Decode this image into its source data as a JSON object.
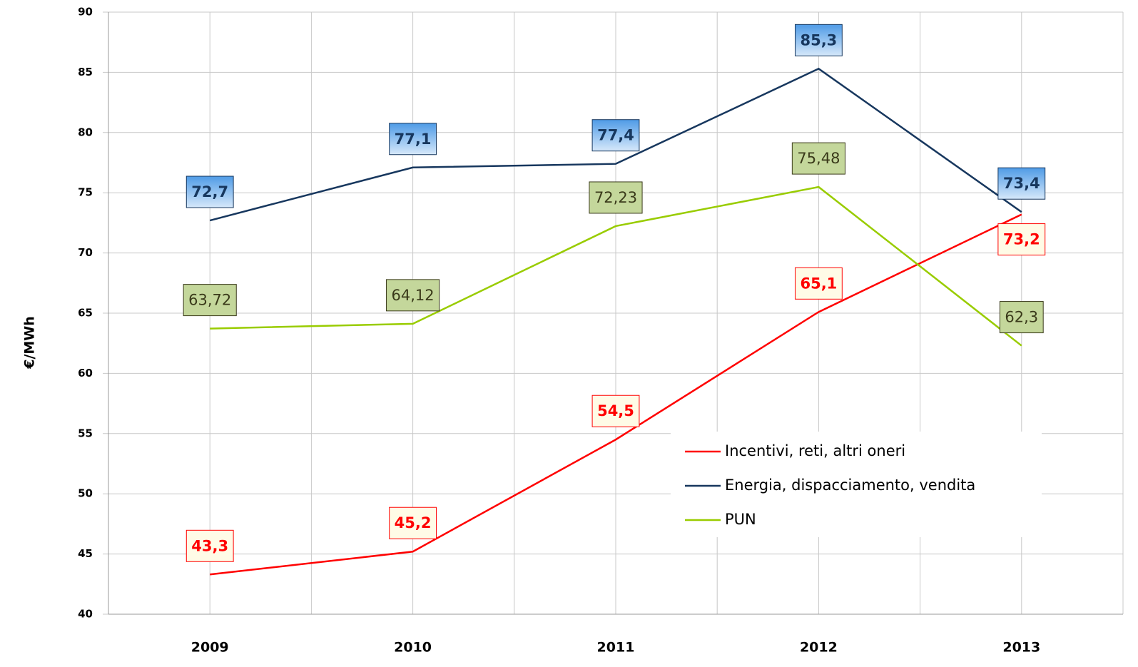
{
  "chart_data": {
    "type": "line",
    "y_label": "€/MWh",
    "categories": [
      "2009",
      "2010",
      "2011",
      "2012",
      "2013"
    ],
    "series": [
      {
        "name": "Incentivi, reti, altri oneri",
        "color": "#ff0000",
        "values": [
          43.3,
          45.2,
          54.5,
          65.1,
          73.2
        ],
        "value_labels": [
          "43,3",
          "45,2",
          "54,5",
          "65,1",
          "73,2"
        ]
      },
      {
        "name": "Energia, dispacciamento, vendita",
        "color": "#17375e",
        "values": [
          72.7,
          77.1,
          77.4,
          85.3,
          73.4
        ],
        "value_labels": [
          "72,7",
          "77,1",
          "77,4",
          "85,3",
          "73,4"
        ]
      },
      {
        "name": "PUN",
        "color": "#99cc00",
        "values": [
          63.72,
          64.12,
          72.23,
          75.48,
          62.3
        ],
        "value_labels": [
          "63,72",
          "64,12",
          "72,23",
          "75,48",
          "62,3"
        ]
      }
    ],
    "ylim": [
      40,
      90
    ],
    "yticks": [
      40,
      45,
      50,
      55,
      60,
      65,
      70,
      75,
      80,
      85,
      90
    ],
    "grid": true,
    "legend": "lower right"
  }
}
